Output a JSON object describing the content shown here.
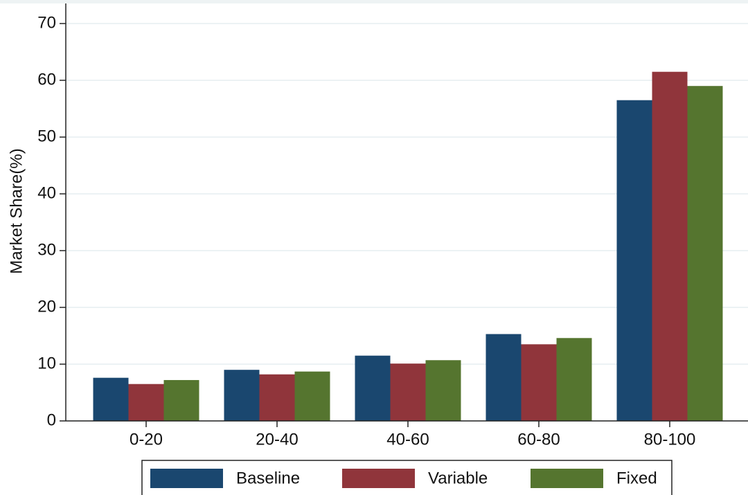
{
  "chart_data": {
    "type": "bar",
    "y_label": "Market Share(%)",
    "categories": [
      "0-20",
      "20-40",
      "40-60",
      "60-80",
      "80-100"
    ],
    "series": [
      {
        "name": "Baseline",
        "color": "#1a476f",
        "values": [
          7.6,
          9.0,
          11.5,
          15.3,
          56.5
        ]
      },
      {
        "name": "Variable",
        "color": "#90353b",
        "values": [
          6.5,
          8.2,
          10.1,
          13.5,
          61.5
        ]
      },
      {
        "name": "Fixed",
        "color": "#55752f",
        "values": [
          7.2,
          8.7,
          10.7,
          14.6,
          59.0
        ]
      }
    ],
    "ylim": [
      0,
      70
    ],
    "yticks": [
      0,
      10,
      20,
      30,
      40,
      50,
      60,
      70
    ],
    "grid": true
  }
}
